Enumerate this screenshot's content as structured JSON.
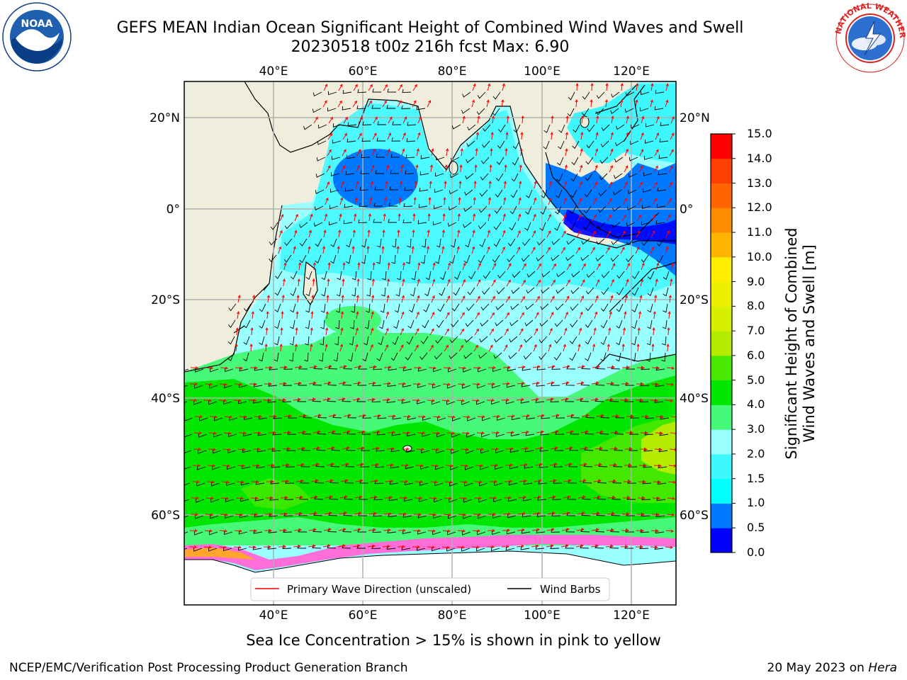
{
  "header": {
    "title_line1": "GEFS MEAN Indian Ocean Significant Height of Combined Wind Waves and Swell",
    "title_line2": "20230518 t00z 216h fcst   Max: 6.90"
  },
  "logos": {
    "left": {
      "name": "noaa-logo",
      "text": "NOAA",
      "ring_text": "NATIONAL OCEANIC AND ATMOSPHERIC ADMINISTRATION · U.S. DEPARTMENT OF COMMERCE"
    },
    "right": {
      "name": "nws-logo",
      "ring_text": "NATIONAL WEATHER SERVICE"
    }
  },
  "map": {
    "lon_ticks_top": [
      "40°E",
      "60°E",
      "80°E",
      "100°E",
      "120°E"
    ],
    "lon_ticks_bottom": [
      "40°E",
      "60°E",
      "80°E",
      "100°E",
      "120°E"
    ],
    "lat_ticks_left": [
      "20°N",
      "0°",
      "20°S",
      "40°S",
      "60°S"
    ],
    "lat_ticks_right": [
      "20°N",
      "0°",
      "20°S",
      "40°S",
      "60°S"
    ],
    "legend": {
      "wave_label": "Primary Wave Direction (unscaled)",
      "barb_label": "Wind Barbs",
      "wave_color": "#ff0000",
      "barb_color": "#000000"
    },
    "land_color": "#efeedd",
    "grid_color": "#b0b0b0"
  },
  "colorbar": {
    "title": "Significant Height of Combined Wind Waves and Swell [m]",
    "title_line1": "Significant Height of Combined",
    "title_line2": "Wind Waves and Swell [m]",
    "tick_labels": [
      "0.0",
      "0.5",
      "1.0",
      "1.5",
      "2.0",
      "3.0",
      "4.0",
      "5.0",
      "6.0",
      "7.0",
      "8.0",
      "9.0",
      "10.0",
      "11.0",
      "12.0",
      "13.0",
      "14.0",
      "15.0"
    ],
    "colors": [
      "#0000ff",
      "#0078ff",
      "#00ffff",
      "#3ef8ff",
      "#99ffff",
      "#46f978",
      "#00e600",
      "#49e800",
      "#b3ec00",
      "#d6f000",
      "#eef000",
      "#ffee00",
      "#ffb400",
      "#ff8c00",
      "#ff6400",
      "#ff4000",
      "#ff0000"
    ]
  },
  "ice_note": "Sea Ice Concentration > 15% is shown in pink to yellow",
  "footer": {
    "left": "NCEP/EMC/Verification Post Processing Product Generation Branch",
    "right_prefix": "20 May 2023 on ",
    "right_host": "Hera"
  }
}
